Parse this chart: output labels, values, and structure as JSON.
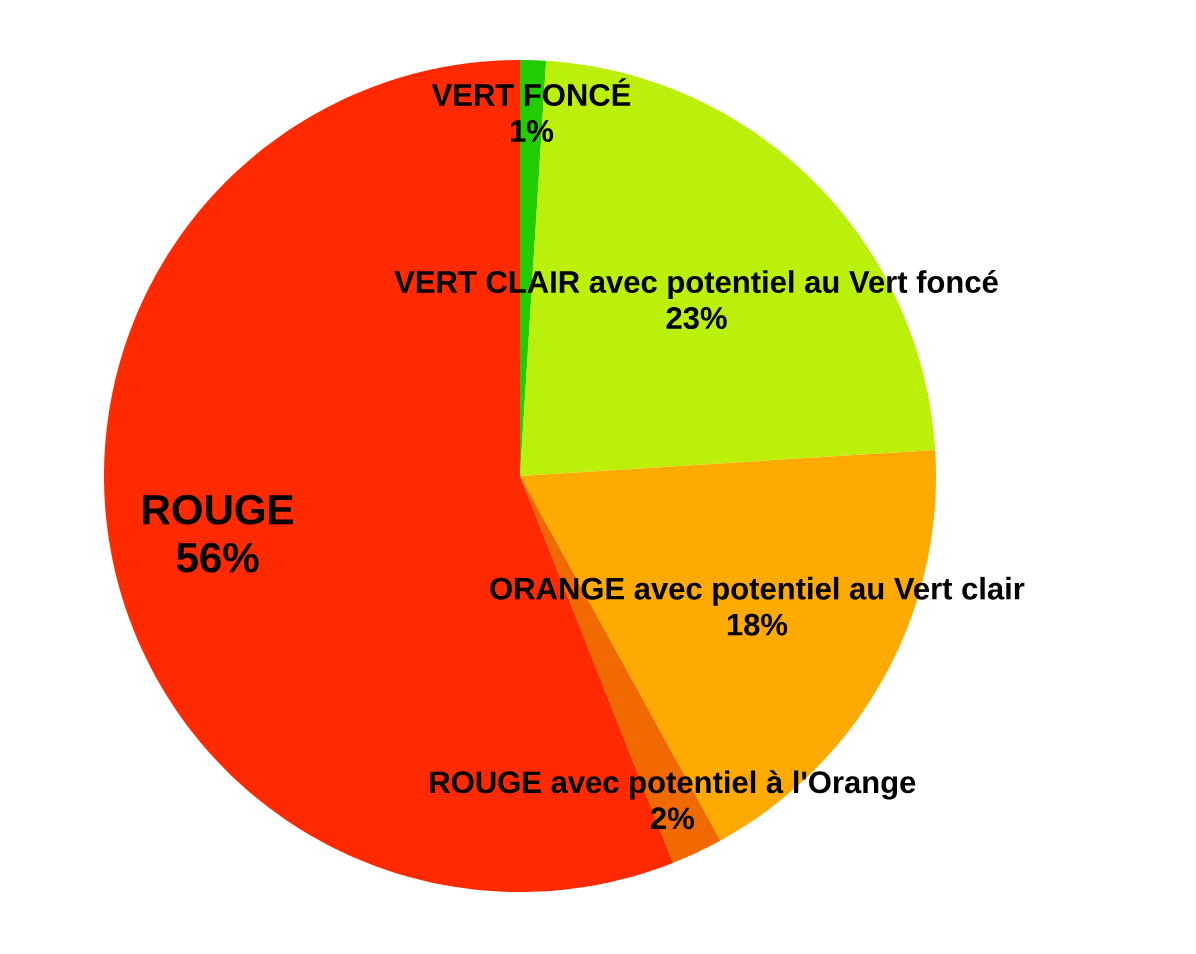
{
  "chart_data": {
    "type": "pie",
    "categories": [
      "VERT FONCÉ",
      "VERT CLAIR avec potentiel au Vert foncé",
      "ORANGE avec potentiel au Vert clair",
      "ROUGE avec potentiel à l'Orange",
      "ROUGE"
    ],
    "values": [
      1,
      23,
      18,
      2,
      56
    ],
    "colors": [
      "#22cc00",
      "#bbf00a",
      "#ffaa00",
      "#f06a00",
      "#ff2a00"
    ],
    "value_labels": [
      "1%",
      "23%",
      "18%",
      "2%",
      "56%"
    ]
  }
}
